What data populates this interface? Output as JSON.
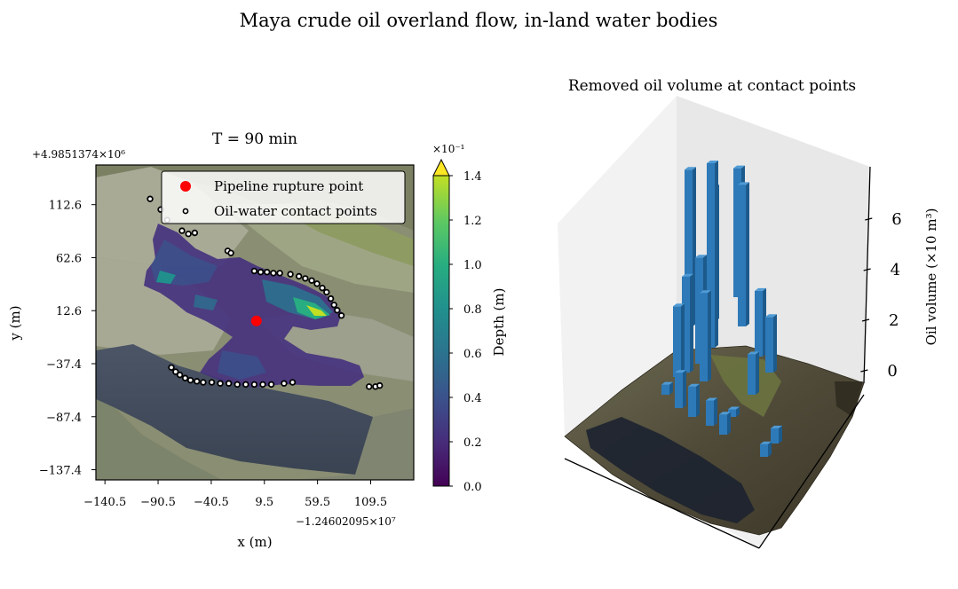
{
  "figure": {
    "title": "Maya crude oil overland flow, in-land water bodies"
  },
  "chart_data": [
    {
      "type": "heatmap",
      "title": "T = 90 min",
      "xlabel": "x (m)",
      "ylabel": "y (m)",
      "x_offset_label": "−1.24602095×10⁷",
      "y_offset_label": "+4.9851374×10⁶",
      "x_ticks": [
        "−140.5",
        "−90.5",
        "−40.5",
        "9.5",
        "59.5",
        "109.5"
      ],
      "x_tick_values": [
        -140.5,
        -90.5,
        -40.5,
        9.5,
        59.5,
        109.5
      ],
      "y_ticks": [
        "112.6",
        "62.6",
        "12.6",
        "−37.4",
        "−87.4",
        "−137.4"
      ],
      "y_tick_values": [
        112.6,
        62.6,
        12.6,
        -37.4,
        -87.4,
        -137.4
      ],
      "xlim": [
        -149,
        150
      ],
      "ylim": [
        -147,
        150
      ],
      "legend": {
        "placement": "top-right",
        "entries": [
          {
            "label": "Pipeline rupture point",
            "marker": "filled-circle",
            "color": "#ff0000"
          },
          {
            "label": "Oil-water contact points",
            "marker": "open-circle",
            "color": "#000000"
          }
        ]
      },
      "rupture_point": {
        "x": 2,
        "y": 3
      },
      "contact_points": [
        {
          "x": -98,
          "y": 118
        },
        {
          "x": -88,
          "y": 108
        },
        {
          "x": -82,
          "y": 98
        },
        {
          "x": -68,
          "y": 88
        },
        {
          "x": -62,
          "y": 85
        },
        {
          "x": -56,
          "y": 86
        },
        {
          "x": -25,
          "y": 69
        },
        {
          "x": -22,
          "y": 67
        },
        {
          "x": 0,
          "y": 50
        },
        {
          "x": 6,
          "y": 49
        },
        {
          "x": 12,
          "y": 49
        },
        {
          "x": 18,
          "y": 48
        },
        {
          "x": 24,
          "y": 48
        },
        {
          "x": 34,
          "y": 47
        },
        {
          "x": 42,
          "y": 45
        },
        {
          "x": 48,
          "y": 43
        },
        {
          "x": 54,
          "y": 41
        },
        {
          "x": 59,
          "y": 38
        },
        {
          "x": 64,
          "y": 34
        },
        {
          "x": 68,
          "y": 30
        },
        {
          "x": 72,
          "y": 24
        },
        {
          "x": 75,
          "y": 18
        },
        {
          "x": 78,
          "y": 13
        },
        {
          "x": 82,
          "y": 8
        },
        {
          "x": -78,
          "y": -41
        },
        {
          "x": -74,
          "y": -45
        },
        {
          "x": -70,
          "y": -48
        },
        {
          "x": -65,
          "y": -51
        },
        {
          "x": -60,
          "y": -53
        },
        {
          "x": -54,
          "y": -54
        },
        {
          "x": -48,
          "y": -55
        },
        {
          "x": -40,
          "y": -55
        },
        {
          "x": -32,
          "y": -56
        },
        {
          "x": -24,
          "y": -56
        },
        {
          "x": -16,
          "y": -57
        },
        {
          "x": -8,
          "y": -57
        },
        {
          "x": 0,
          "y": -57
        },
        {
          "x": 8,
          "y": -57
        },
        {
          "x": 16,
          "y": -57
        },
        {
          "x": 28,
          "y": -56
        },
        {
          "x": 36,
          "y": -55
        },
        {
          "x": 108,
          "y": -59
        },
        {
          "x": 114,
          "y": -59
        },
        {
          "x": 118,
          "y": -58
        }
      ],
      "colorbar": {
        "label": "Depth (m)",
        "multiplier_label": "×10⁻¹",
        "ticks": [
          "0.0",
          "0.2",
          "0.4",
          "0.6",
          "0.8",
          "1.0",
          "1.2",
          "1.4"
        ],
        "tick_values": [
          0.0,
          0.2,
          0.4,
          0.6,
          0.8,
          1.0,
          1.2,
          1.4
        ],
        "extend": "max",
        "colormap": "viridis"
      }
    },
    {
      "type": "bar",
      "title": "Removed oil volume at contact points",
      "zlabel": "Oil volume (×10 m³)",
      "z_ticks": [
        "0",
        "2",
        "4",
        "6"
      ],
      "z_tick_values": [
        0,
        2,
        4,
        6
      ],
      "zlim": [
        -0.6,
        7.8
      ],
      "bar_color": "#2e7ab8",
      "bars_approx_heights": [
        7.3,
        6.2,
        5.6,
        5.3,
        5.1,
        4.2,
        3.8,
        3.5,
        2.8,
        2.6,
        2.2,
        1.6,
        1.4,
        1.2,
        1.0,
        0.8,
        0.6,
        0.5,
        0.4,
        0.3
      ]
    }
  ]
}
